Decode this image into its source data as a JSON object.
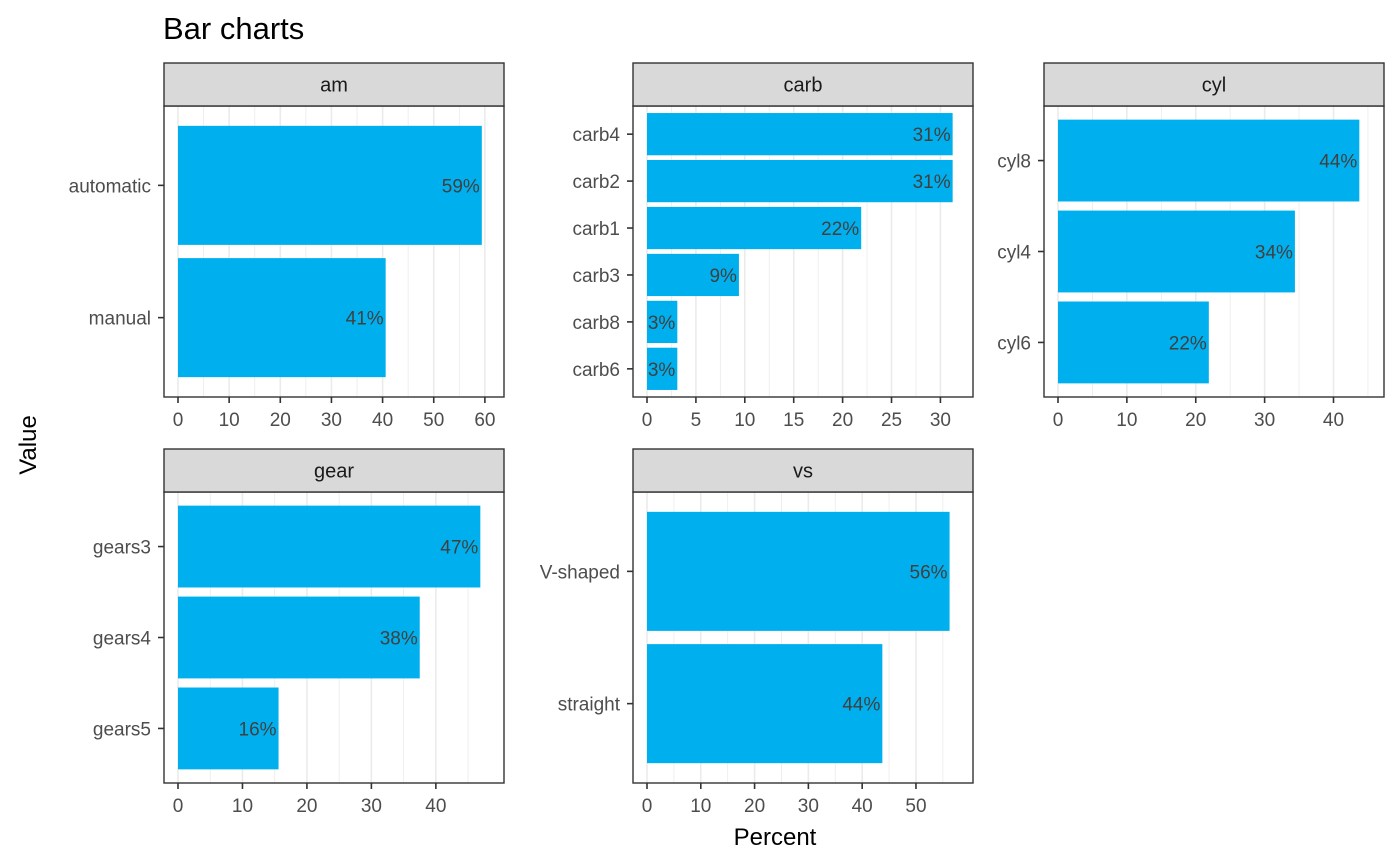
{
  "chart_data": {
    "type": "bar",
    "orientation": "horizontal",
    "title": "Bar charts",
    "xlabel": "Percent",
    "ylabel": "Value",
    "bar_color": "#00B0EE",
    "strip_fill": "#D9D9D9",
    "grid": true,
    "panels": [
      {
        "facet": "am",
        "xlim": [
          0,
          61
        ],
        "xticks": [
          0,
          10,
          20,
          30,
          40,
          50,
          60
        ],
        "categories": [
          "automatic",
          "manual"
        ],
        "values": [
          59.4,
          40.6
        ],
        "labels": [
          "59%",
          "41%"
        ]
      },
      {
        "facet": "carb",
        "xlim": [
          0,
          31.9
        ],
        "xticks": [
          0,
          5,
          10,
          15,
          20,
          25,
          30
        ],
        "categories": [
          "carb4",
          "carb2",
          "carb1",
          "carb3",
          "carb8",
          "carb6"
        ],
        "values": [
          31.25,
          31.25,
          21.9,
          9.4,
          3.1,
          3.1
        ],
        "labels": [
          "31%",
          "31%",
          "22%",
          "9%",
          "3%",
          "3%"
        ]
      },
      {
        "facet": "cyl",
        "xlim": [
          0,
          45.3
        ],
        "xticks": [
          0,
          10,
          20,
          30,
          40
        ],
        "categories": [
          "cyl8",
          "cyl4",
          "cyl6"
        ],
        "values": [
          43.75,
          34.4,
          21.9
        ],
        "labels": [
          "44%",
          "34%",
          "22%"
        ]
      },
      {
        "facet": "gear",
        "xlim": [
          0,
          48.4
        ],
        "xticks": [
          0,
          10,
          20,
          30,
          40
        ],
        "categories": [
          "gears3",
          "gears4",
          "gears5"
        ],
        "values": [
          46.9,
          37.5,
          15.6
        ],
        "labels": [
          "47%",
          "38%",
          "16%"
        ]
      },
      {
        "facet": "vs",
        "xlim": [
          0,
          58
        ],
        "xticks": [
          0,
          10,
          20,
          30,
          40,
          50
        ],
        "categories": [
          "V-shaped",
          "straight"
        ],
        "values": [
          56.25,
          43.75
        ],
        "labels": [
          "56%",
          "44%"
        ]
      }
    ]
  }
}
